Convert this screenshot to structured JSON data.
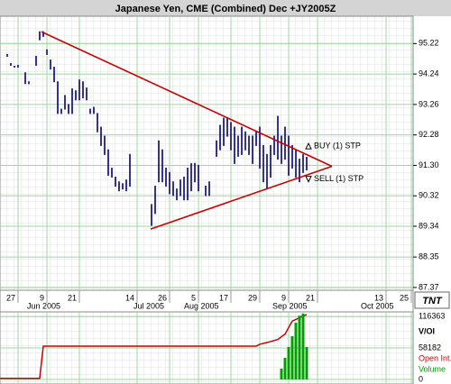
{
  "chart_data": [
    {
      "type": "ohlc",
      "title": "Japanese Yen, CME (Combined) Dec +JY2005Z",
      "logo": "TNT",
      "color": "#000080",
      "xlim": [
        -13,
        101.5
      ],
      "ylim": [
        87.28,
        96.1
      ],
      "yticks": [
        95.22,
        94.24,
        93.26,
        92.28,
        {
          "value": 91.3,
          "label": "91.30"
        },
        90.32,
        89.34,
        88.35,
        87.37
      ],
      "xticks": [
        {
          "value": -8,
          "label": "27"
        },
        {
          "value": 0,
          "label": "9"
        },
        {
          "value": 9,
          "label": "21"
        },
        {
          "value": 25,
          "label": "14"
        },
        {
          "value": 34,
          "label": "26"
        },
        {
          "value": 42,
          "label": "5"
        },
        {
          "value": 51,
          "label": "17"
        },
        {
          "value": 59,
          "label": "29"
        },
        {
          "value": 67,
          "label": "9"
        },
        {
          "value": 75,
          "label": "21"
        },
        {
          "value": 94,
          "label": "13"
        },
        {
          "value": 101,
          "label": "25"
        }
      ],
      "month_labels": [
        {
          "value": -5.5,
          "label": "Jun 2005"
        },
        {
          "value": 24,
          "label": "Jul 2005"
        },
        {
          "value": 38,
          "label": "Aug 2005"
        },
        {
          "value": 62.5,
          "label": "Sep 2005"
        },
        {
          "value": 87,
          "label": "Oct 2005"
        }
      ],
      "grid": true,
      "x": [
        -11,
        -10,
        -9,
        -8,
        -6,
        -5,
        -3,
        -2,
        -1,
        0,
        1,
        2,
        3,
        4,
        5,
        6,
        7,
        8,
        9,
        10,
        11,
        12,
        13,
        14,
        15,
        16,
        17,
        18,
        19,
        20,
        21,
        22,
        23,
        29,
        30,
        31,
        32,
        33,
        34,
        35,
        36,
        37,
        38,
        39,
        40,
        41,
        42,
        44,
        45,
        47,
        48,
        49,
        50,
        51,
        52,
        53,
        54,
        55,
        56,
        57,
        58,
        59,
        60,
        61,
        62,
        63,
        64,
        65,
        66,
        67,
        68,
        69,
        70,
        71,
        72
      ],
      "high": [
        94.87,
        94.58,
        94.49,
        94.52,
        94.28,
        93.99,
        94.81,
        95.6,
        95.6,
        95.02,
        94.69,
        94.46,
        93.99,
        93.11,
        93.55,
        93.26,
        93.76,
        93.7,
        94.05,
        93.99,
        93.79,
        93.11,
        93.17,
        92.97,
        92.53,
        92.24,
        91.8,
        91.21,
        90.92,
        90.77,
        90.71,
        90.83,
        91.65,
        90.04,
        90.63,
        92.09,
        91.8,
        91.21,
        91.07,
        90.77,
        90.54,
        90.83,
        90.92,
        91.21,
        91.36,
        91.36,
        91.3,
        90.63,
        90.77,
        92.09,
        92.59,
        92.82,
        92.82,
        92.68,
        92.53,
        92.24,
        92.53,
        92.38,
        92.24,
        92.24,
        92.38,
        92.53,
        91.94,
        91.65,
        91.94,
        92.24,
        92.88,
        92.24,
        92.53,
        92.24,
        91.94,
        91.8,
        91.5,
        91.65,
        91.56
      ],
      "low": [
        94.81,
        94.52,
        94.46,
        94.46,
        93.93,
        93.93,
        94.52,
        95.34,
        95.45,
        94.87,
        94.4,
        93.99,
        92.97,
        92.97,
        93.11,
        92.97,
        92.97,
        93.41,
        93.41,
        93.47,
        93.41,
        92.97,
        92.97,
        92.38,
        91.94,
        91.65,
        90.98,
        90.92,
        90.63,
        90.48,
        90.54,
        90.48,
        90.63,
        89.37,
        89.75,
        90.77,
        90.77,
        90.63,
        90.39,
        90.33,
        90.19,
        90.33,
        90.19,
        90.19,
        90.48,
        90.77,
        90.48,
        90.33,
        90.33,
        91.59,
        91.8,
        91.94,
        92.24,
        91.8,
        91.36,
        91.59,
        91.65,
        91.8,
        91.65,
        91.36,
        91.94,
        91.21,
        90.77,
        90.54,
        90.92,
        91.65,
        91.5,
        91.36,
        91.5,
        90.98,
        91.21,
        90.92,
        90.77,
        91.07,
        91.15
      ],
      "lines": [
        {
          "color": "#cc0000",
          "x": [
            -1.5,
            79
          ],
          "y": [
            95.6,
            91.27
          ]
        },
        {
          "color": "#cc0000",
          "x": [
            28.75,
            79
          ],
          "y": [
            89.25,
            91.27
          ]
        }
      ],
      "annotations": [
        {
          "text": "BUY (1) STP",
          "x": 72.5,
          "y": 91.92,
          "marker": "up"
        },
        {
          "text": "SELL (1) STP",
          "x": 72.5,
          "y": 90.86,
          "marker": "down"
        }
      ]
    },
    {
      "type": "bar",
      "ylabel": "V/OI",
      "xlim": [
        -13,
        101.5
      ],
      "ylim": [
        -8500,
        125000
      ],
      "yticks": [
        116363,
        58182,
        0
      ],
      "series": [
        {
          "name": "Open Int.",
          "type": "line",
          "color": "#cc0000",
          "x": [
            -13,
            -2,
            -1,
            58,
            59,
            62,
            64,
            66,
            68,
            72
          ],
          "values": [
            2000,
            2000,
            61600,
            61600,
            65000,
            70000,
            74000,
            84000,
            108000,
            120000
          ]
        },
        {
          "name": "Volume",
          "type": "bar",
          "color": "#00a000",
          "x": [
            65,
            66,
            67,
            68,
            69,
            70,
            71,
            72
          ],
          "values": [
            20000,
            40000,
            60000,
            80000,
            105000,
            118000,
            122000,
            60000
          ]
        }
      ]
    }
  ]
}
